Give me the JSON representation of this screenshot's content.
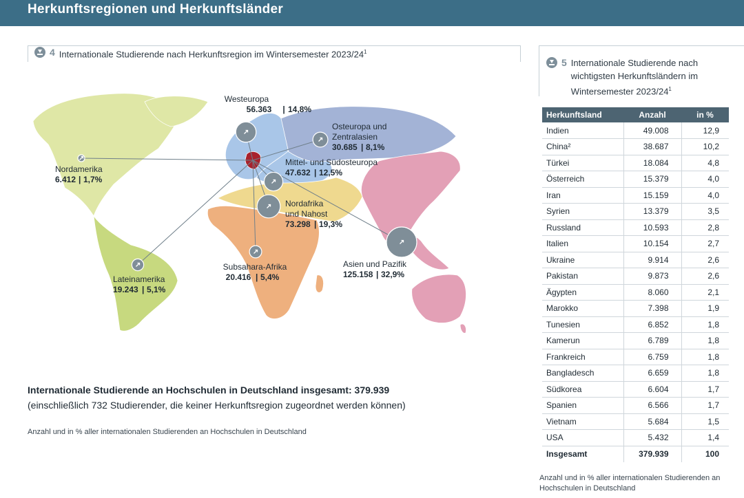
{
  "header": {
    "title": "Herkunftsregionen und Herkunftsländer"
  },
  "figure4": {
    "number": "4",
    "title": "Internationale Studierende nach Herkunftsregion im Wintersemester 2023/24",
    "footnote_mark": "1",
    "total_label": "Internationale Studierende an Hochschulen in Deutschland insgesamt:",
    "total_value": "379.939",
    "total_note": "(einschließlich 732 Studierender, die keiner Herkunftsregion zugeordnet werden können)",
    "source_note": "Anzahl und in % aller internationalen Studierenden an Hochschulen in Deutschland"
  },
  "figure5": {
    "number": "5",
    "title_lines": [
      "Internationale Studierende nach",
      "wichtigsten Herkunftsländern im",
      "Wintersemester 2023/24"
    ],
    "footnote_mark": "1",
    "source_note": "Anzahl und in % aller internationalen Studierenden an Hochschulen in Deutschland"
  },
  "colors": {
    "header_bg": "#3c6e87",
    "north_america": "#dfe7a6",
    "latin_america": "#c7d97f",
    "europe": "#a9c6e8",
    "east_europe": "#a3b3d6",
    "north_africa": "#efd98f",
    "subsahara": "#eeb07e",
    "asia": "#e3a0b6",
    "germany": "#a8222d",
    "bubble": "#7f8e98",
    "table_header": "#4d6472"
  },
  "chart_data": [
    {
      "type": "bubble-map",
      "title": "Internationale Studierende nach Herkunftsregion im Wintersemester 2023/24",
      "unit": "Anzahl | %",
      "regions": [
        {
          "name": "Westeuropa",
          "value": 56363,
          "label_value": "56.363",
          "percent_label": "14,8%",
          "percent": 14.8
        },
        {
          "name": "Osteuropa und Zentralasien",
          "name_lines": [
            "Osteuropa und",
            "Zentralasien"
          ],
          "value": 30685,
          "label_value": "30.685",
          "percent_label": "8,1%",
          "percent": 8.1
        },
        {
          "name": "Mittel- und Südosteuropa",
          "value": 47632,
          "label_value": "47.632",
          "percent_label": "12,5%",
          "percent": 12.5
        },
        {
          "name": "Nordafrika und Nahost",
          "name_lines": [
            "Nordafrika",
            "und Nahost"
          ],
          "value": 73298,
          "label_value": "73.298",
          "percent_label": "19,3%",
          "percent": 19.3
        },
        {
          "name": "Subsahara-Afrika",
          "value": 20416,
          "label_value": "20.416",
          "percent_label": "5,4%",
          "percent": 5.4
        },
        {
          "name": "Asien und Pazifik",
          "value": 125158,
          "label_value": "125.158",
          "percent_label": "32,9%",
          "percent": 32.9
        },
        {
          "name": "Nordamerika",
          "value": 6412,
          "label_value": "6.412",
          "percent_label": "1,7%",
          "percent": 1.7
        },
        {
          "name": "Lateinamerika",
          "value": 19243,
          "label_value": "19.243",
          "percent_label": "5,1%",
          "percent": 5.1
        }
      ]
    },
    {
      "type": "table",
      "columns": [
        "Herkunftsland",
        "Anzahl",
        "in %"
      ],
      "rows": [
        [
          "Indien",
          "49.008",
          "12,9"
        ],
        [
          "China²",
          "38.687",
          "10,2"
        ],
        [
          "Türkei",
          "18.084",
          "4,8"
        ],
        [
          "Österreich",
          "15.379",
          "4,0"
        ],
        [
          "Iran",
          "15.159",
          "4,0"
        ],
        [
          "Syrien",
          "13.379",
          "3,5"
        ],
        [
          "Russland",
          "10.593",
          "2,8"
        ],
        [
          "Italien",
          "10.154",
          "2,7"
        ],
        [
          "Ukraine",
          "9.914",
          "2,6"
        ],
        [
          "Pakistan",
          "9.873",
          "2,6"
        ],
        [
          "Ägypten",
          "8.060",
          "2,1"
        ],
        [
          "Marokko",
          "7.398",
          "1,9"
        ],
        [
          "Tunesien",
          "6.852",
          "1,8"
        ],
        [
          "Kamerun",
          "6.789",
          "1,8"
        ],
        [
          "Frankreich",
          "6.759",
          "1,8"
        ],
        [
          "Bangladesch",
          "6.659",
          "1,8"
        ],
        [
          "Südkorea",
          "6.604",
          "1,7"
        ],
        [
          "Spanien",
          "6.566",
          "1,7"
        ],
        [
          "Vietnam",
          "5.684",
          "1,5"
        ],
        [
          "USA",
          "5.432",
          "1,4"
        ]
      ],
      "total": [
        "Insgesamt",
        "379.939",
        "100"
      ]
    }
  ]
}
